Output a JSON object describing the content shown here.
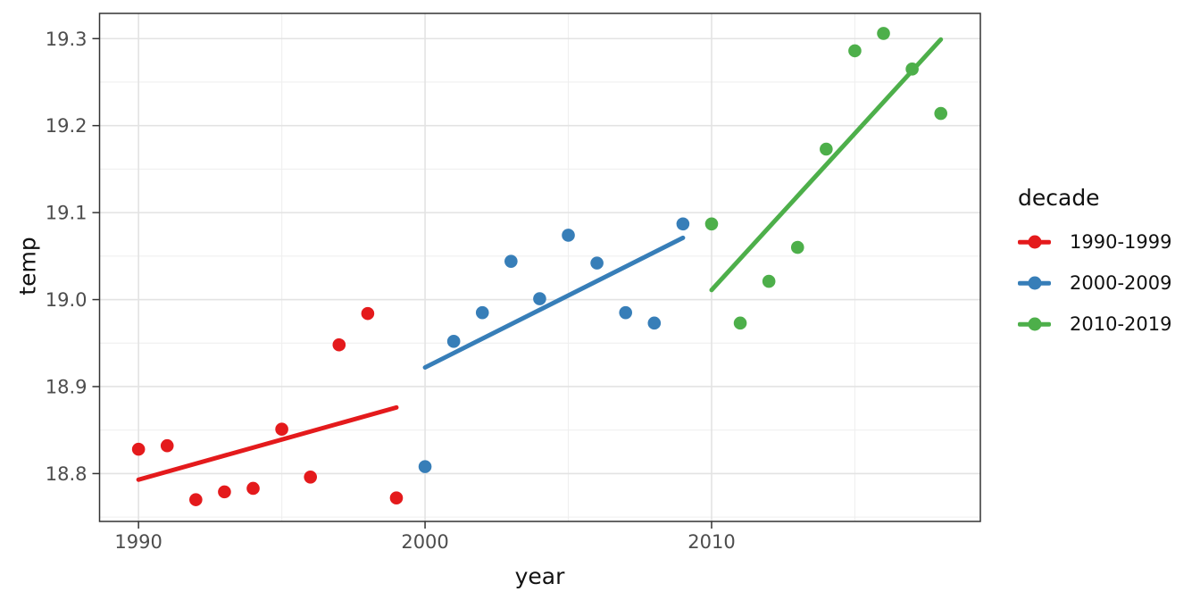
{
  "chart_data": {
    "type": "scatter",
    "title": "",
    "xlabel": "year",
    "ylabel": "temp",
    "xlim": [
      1988.64,
      2019.38
    ],
    "ylim": [
      18.745,
      19.329
    ],
    "x_ticks": [
      1990,
      2000,
      2010
    ],
    "x_minor_gridlines": [
      1995,
      2005,
      2015
    ],
    "y_ticks": [
      18.8,
      18.9,
      19.0,
      19.1,
      19.2,
      19.3
    ],
    "y_minor_gridlines": [
      18.75,
      18.85,
      18.95,
      19.05,
      19.15,
      19.25
    ],
    "grid": "major and minor, light grey on white, dark panel border",
    "legend": {
      "title": "decade",
      "position": "right"
    },
    "series": [
      {
        "name": "1990-1999",
        "color": "#E41A1C",
        "x": [
          1990,
          1991,
          1992,
          1993,
          1994,
          1995,
          1996,
          1997,
          1998,
          1999
        ],
        "y": [
          18.828,
          18.832,
          18.77,
          18.779,
          18.783,
          18.851,
          18.796,
          18.948,
          18.984,
          18.772
        ],
        "trend": {
          "x": [
            1990,
            1999
          ],
          "y": [
            18.793,
            18.876
          ]
        }
      },
      {
        "name": "2000-2009",
        "color": "#377EB8",
        "x": [
          2000,
          2001,
          2002,
          2003,
          2004,
          2005,
          2006,
          2007,
          2008,
          2009
        ],
        "y": [
          18.808,
          18.952,
          18.985,
          19.044,
          19.001,
          19.074,
          19.042,
          18.985,
          18.973,
          19.087
        ],
        "trend": {
          "x": [
            2000,
            2009
          ],
          "y": [
            18.922,
            19.071
          ]
        }
      },
      {
        "name": "2010-2019",
        "color": "#4DAF4A",
        "x": [
          2010,
          2011,
          2012,
          2013,
          2014,
          2015,
          2016,
          2017,
          2018
        ],
        "y": [
          19.087,
          18.973,
          19.021,
          19.06,
          19.173,
          19.286,
          19.306,
          19.265,
          19.214
        ],
        "trend": {
          "x": [
            2010,
            2018
          ],
          "y": [
            19.011,
            19.299
          ]
        }
      }
    ],
    "style": {
      "tick_label_color": "#4D4D4D",
      "axis_title_color": "#111111",
      "panel_border_color": "#333333",
      "major_grid_color": "#E3E3E3",
      "minor_grid_color": "#EFEFEF",
      "point_radius": 7.3,
      "trend_line_width": 5
    }
  }
}
